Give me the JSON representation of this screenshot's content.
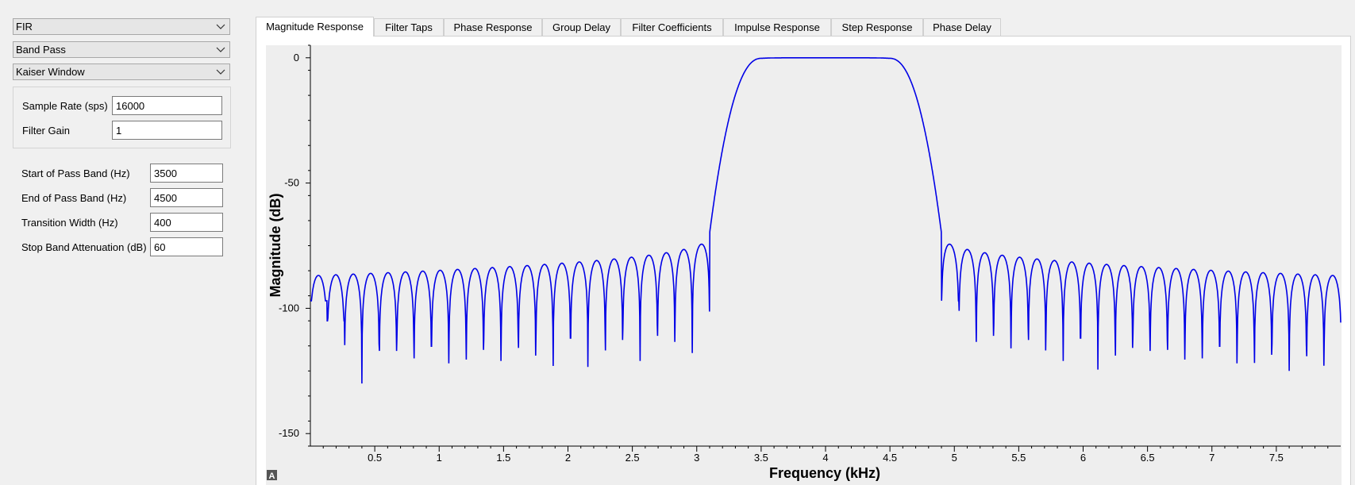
{
  "filter_type": {
    "value": "FIR",
    "icon": "chevron-down-icon"
  },
  "response_type": {
    "value": "Band Pass",
    "icon": "chevron-down-icon"
  },
  "window_type": {
    "value": "Kaiser Window",
    "icon": "chevron-down-icon"
  },
  "general": {
    "sample_rate_label": "Sample Rate (sps)",
    "sample_rate_value": "16000",
    "gain_label": "Filter Gain",
    "gain_value": "1"
  },
  "params": {
    "start_label": "Start of Pass Band (Hz)",
    "start_value": "3500",
    "end_label": "End of Pass Band (Hz)",
    "end_value": "4500",
    "transition_label": "Transition Width (Hz)",
    "transition_value": "400",
    "atten_label": "Stop Band Attenuation (dB)",
    "atten_value": "60"
  },
  "tabs": [
    "Magnitude Response",
    "Filter Taps",
    "Phase Response",
    "Group Delay",
    "Filter Coefficients",
    "Impulse Response",
    "Step Response",
    "Phase Delay"
  ],
  "active_tab": 0,
  "autoscale_label": "A",
  "line_color": "#0000e6",
  "chart_data": {
    "type": "line",
    "title": "",
    "xlabel": "Frequency (kHz)",
    "ylabel": "Magnitude (dB)",
    "xlim": [
      0,
      8
    ],
    "ylim": [
      -155,
      5
    ],
    "x_ticks": [
      "0.5",
      "1",
      "1.5",
      "2",
      "2.5",
      "3",
      "3.5",
      "4",
      "4.5",
      "5",
      "5.5",
      "6",
      "6.5",
      "7",
      "7.5"
    ],
    "y_ticks": [
      "0",
      "-50",
      "-100",
      "-150"
    ],
    "grid": false,
    "series": [
      {
        "passband": [
          3.5,
          4.5
        ],
        "transition_width": 0.4,
        "passband_db": 0,
        "edge_peaks_db": -70,
        "sidelobe_peak_db_at_0": -87,
        "sidelobe_peak_db_near_edge": -75,
        "null_depths_db": [
          -145,
          -131,
          -128,
          -123,
          -121,
          -125,
          -145,
          -126,
          -123,
          -130,
          -125,
          -118,
          -121,
          -125,
          -126,
          -122,
          -120,
          -126,
          -117,
          -114,
          -130,
          -105,
          -97,
          -105,
          -130,
          -115,
          -116,
          -130,
          -112,
          -121,
          -125,
          -118,
          -120,
          -117,
          -125,
          -122,
          -130,
          -120,
          -122,
          -145,
          -125,
          -125,
          -128,
          -145
        ]
      }
    ]
  }
}
